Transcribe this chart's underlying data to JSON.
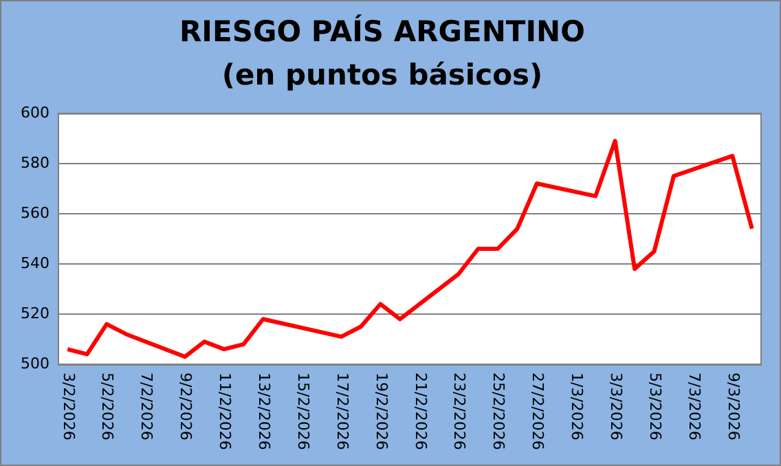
{
  "chart_data": {
    "type": "line",
    "title": "RIESGO PAÍS ARGENTINO",
    "subtitle": "(en puntos básicos)",
    "x": [
      "2026-02-03",
      "2026-02-04",
      "2026-02-05",
      "2026-02-06",
      "2026-02-09",
      "2026-02-10",
      "2026-02-11",
      "2026-02-12",
      "2026-02-13",
      "2026-02-17",
      "2026-02-18",
      "2026-02-19",
      "2026-02-20",
      "2026-02-23",
      "2026-02-24",
      "2026-02-25",
      "2026-02-26",
      "2026-02-27",
      "2026-03-02",
      "2026-03-03",
      "2026-03-04",
      "2026-03-05",
      "2026-03-06",
      "2026-03-09",
      "2026-03-10"
    ],
    "series": [
      {
        "color": "#ff0000",
        "values": [
          506,
          504,
          516,
          512,
          503,
          509,
          506,
          508,
          518,
          511,
          515,
          524,
          518,
          536,
          546,
          546,
          554,
          572,
          567,
          589,
          538,
          545,
          575,
          583,
          554
        ]
      }
    ],
    "xlim": [
      "2026-02-02T12:00",
      "2026-03-10T12:00"
    ],
    "xticks": [
      {
        "value": "2026-02-03",
        "label": "3/2/2026"
      },
      {
        "value": "2026-02-05",
        "label": "5/2/2026"
      },
      {
        "value": "2026-02-07",
        "label": "7/2/2026"
      },
      {
        "value": "2026-02-09",
        "label": "9/2/2026"
      },
      {
        "value": "2026-02-11",
        "label": "11/2/2026"
      },
      {
        "value": "2026-02-13",
        "label": "13/2/2026"
      },
      {
        "value": "2026-02-15",
        "label": "15/2/2026"
      },
      {
        "value": "2026-02-17",
        "label": "17/2/2026"
      },
      {
        "value": "2026-02-19",
        "label": "19/2/2026"
      },
      {
        "value": "2026-02-21",
        "label": "21/2/2026"
      },
      {
        "value": "2026-02-23",
        "label": "23/2/2026"
      },
      {
        "value": "2026-02-25",
        "label": "25/2/2026"
      },
      {
        "value": "2026-02-27",
        "label": "27/2/2026"
      },
      {
        "value": "2026-03-01",
        "label": "1/3/2026"
      },
      {
        "value": "2026-03-03",
        "label": "3/3/2026"
      },
      {
        "value": "2026-03-05",
        "label": "5/3/2026"
      },
      {
        "value": "2026-03-07",
        "label": "7/3/2026"
      },
      {
        "value": "2026-03-09",
        "label": "9/3/2026"
      }
    ],
    "ylim": [
      500,
      600
    ],
    "yticks": [
      500,
      520,
      540,
      560,
      580,
      600
    ],
    "grid": "y",
    "legend": false,
    "marker": "none",
    "line_style": "solid"
  }
}
